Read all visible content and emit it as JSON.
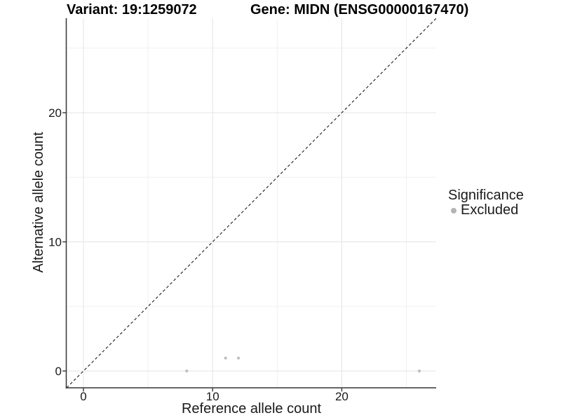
{
  "chart_data": {
    "type": "scatter",
    "title_left": "Variant: 19:1259072",
    "title_right": "Gene: MIDN (ENSG00000167470)",
    "xlabel": "Reference allele count",
    "ylabel": "Alternative allele count",
    "xlim": [
      -1.3,
      27.3
    ],
    "ylim": [
      -1.27,
      27.3
    ],
    "x_ticks": [
      0,
      10,
      20
    ],
    "y_ticks": [
      0,
      10,
      20
    ],
    "x_minor_ticks": [
      5,
      15,
      25
    ],
    "y_minor_ticks": [
      5,
      15,
      25
    ],
    "grid": "major and minor, light gray on white",
    "identity_line": {
      "slope": 1,
      "intercept": 0,
      "style": "dashed"
    },
    "series": [
      {
        "name": "Excluded",
        "color": "#bdbdbd",
        "points": [
          [
            8,
            0
          ],
          [
            11,
            1
          ],
          [
            12,
            1
          ],
          [
            26,
            0
          ]
        ]
      }
    ],
    "legend": {
      "position": "right",
      "title": "Significance",
      "entries": [
        {
          "label": "Excluded",
          "color": "#bdbdbd"
        }
      ]
    }
  },
  "colors": {
    "background": "#ffffff",
    "axis_line": "#333333",
    "tick_text": "#1a1a1a",
    "title_text": "#000000",
    "grid_major": "#e4e4e4",
    "grid_minor": "#f0f0f0",
    "dashed_line": "#1a1a1a",
    "point": "#bdbdbd"
  }
}
